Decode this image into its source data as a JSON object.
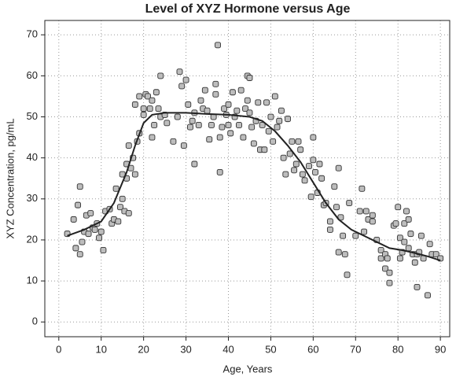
{
  "chart_data": {
    "type": "scatter",
    "title": "Level of XYZ Hormone versus Age",
    "x_label": "Age, Years",
    "y_label": "XYZ Concentration, pg/mL",
    "xlim": [
      -3.3,
      92.2
    ],
    "ylim": [
      -3.6,
      73.5
    ],
    "xticks": [
      0,
      10,
      20,
      30,
      40,
      50,
      60,
      70,
      80,
      90
    ],
    "yticks": [
      0,
      10,
      20,
      30,
      40,
      50,
      60,
      70
    ],
    "grid": true,
    "series": [
      {
        "type": "scatter",
        "color": "#bdbdbd",
        "x": [
          2,
          3.5,
          4,
          4.5,
          5,
          5,
          5.5,
          6,
          6.5,
          7,
          7.5,
          8,
          8.5,
          9,
          9.5,
          10,
          10.5,
          11,
          12,
          12.5,
          13,
          13.5,
          14,
          14.5,
          15,
          15,
          15.5,
          16,
          16,
          16.5,
          16.5,
          17,
          17.5,
          18,
          18,
          18.5,
          19,
          19,
          20,
          20,
          20.5,
          21,
          21.5,
          22,
          22,
          22.5,
          23,
          23.5,
          24,
          24,
          25,
          25.5,
          27,
          28,
          28.5,
          29,
          29.5,
          30,
          30.5,
          31,
          31.5,
          32,
          32,
          33,
          33.5,
          34,
          34.5,
          35,
          35.5,
          36,
          36.5,
          37,
          37,
          37.5,
          38,
          38,
          38.5,
          39,
          39.5,
          40,
          40,
          40.5,
          41,
          41.5,
          42,
          42.5,
          43,
          43.5,
          44,
          44.5,
          44.5,
          45,
          45,
          45.5,
          46,
          46.5,
          47,
          47.5,
          48,
          48.5,
          49,
          49.5,
          50,
          50.5,
          51,
          51.5,
          52,
          52.5,
          53,
          53.5,
          54,
          54.5,
          55,
          55.5,
          56,
          56.5,
          57,
          57.5,
          58,
          59,
          59.5,
          60,
          60,
          60.5,
          61,
          61.5,
          62,
          62.5,
          63,
          64,
          64,
          65,
          65.5,
          66,
          66,
          66.5,
          67,
          67.5,
          68,
          68.5,
          70,
          71,
          71.5,
          72,
          72.5,
          73,
          74,
          74,
          75,
          76,
          76,
          77,
          77,
          77.5,
          78,
          78,
          79,
          79.5,
          80,
          80.5,
          80.5,
          81,
          81.5,
          81.5,
          82,
          82.5,
          82.5,
          83,
          83.5,
          84,
          84.5,
          84.5,
          85,
          85.5,
          86,
          87,
          87.5,
          88,
          89,
          90
        ],
        "values": [
          21.5,
          25,
          18,
          28.5,
          33,
          16.5,
          19.5,
          22,
          26,
          21.5,
          26.5,
          23,
          22.5,
          24,
          20.5,
          22,
          17.5,
          27,
          27.5,
          24,
          25,
          32.5,
          24.5,
          28,
          30,
          36,
          27,
          38.5,
          35,
          43,
          26.5,
          37.5,
          40,
          36,
          53,
          44,
          55,
          46,
          52,
          50.5,
          55.5,
          55,
          52,
          45,
          54,
          48,
          56,
          52,
          60,
          50,
          50.5,
          48.5,
          44,
          50,
          61,
          57.5,
          43,
          59,
          53,
          47.5,
          49,
          38.5,
          51,
          48,
          54,
          52,
          56.5,
          51.5,
          44.5,
          48,
          50,
          55.5,
          58,
          67.5,
          45,
          36.5,
          47.5,
          52,
          50.5,
          53,
          48,
          46,
          56,
          50,
          51.5,
          48,
          56.5,
          45,
          52,
          60,
          54,
          59.5,
          51,
          47.5,
          43.5,
          49,
          53.5,
          42,
          48,
          42,
          53.5,
          46.5,
          50,
          44,
          55,
          47.5,
          49,
          51.5,
          40,
          36,
          49.5,
          41,
          44,
          37,
          38.5,
          44,
          42,
          36,
          34.5,
          38,
          30.5,
          45,
          39.5,
          36.5,
          31.5,
          38.5,
          35,
          28.5,
          29,
          24.5,
          22.5,
          33,
          28,
          37.5,
          17,
          25.5,
          21,
          16.5,
          11.5,
          29,
          21,
          27,
          32.5,
          22,
          27,
          25,
          24.5,
          26,
          20,
          17.5,
          15.5,
          16.5,
          13,
          15.5,
          9.5,
          12,
          23.5,
          24,
          28,
          20.5,
          15.5,
          17,
          19.5,
          24,
          27,
          25,
          18,
          21.5,
          16.5,
          14.5,
          16.5,
          8.5,
          17,
          21,
          15.5,
          6.5,
          19,
          16.5,
          16.5,
          15.5
        ]
      },
      {
        "type": "line",
        "color": "#222222",
        "x": [
          2,
          6,
          10,
          13,
          16,
          18,
          20,
          22,
          25,
          30,
          35,
          40,
          45,
          48,
          51,
          54,
          57,
          60,
          63,
          66,
          69,
          72,
          75,
          78,
          81,
          84,
          87,
          90
        ],
        "values": [
          21,
          22.5,
          24.5,
          29,
          36.5,
          43,
          48.5,
          50.5,
          51,
          51,
          50.7,
          50.5,
          50,
          49,
          46.5,
          43,
          39,
          34,
          29,
          25,
          22.5,
          21,
          19.5,
          18,
          17.5,
          16.8,
          16,
          15
        ]
      }
    ]
  }
}
